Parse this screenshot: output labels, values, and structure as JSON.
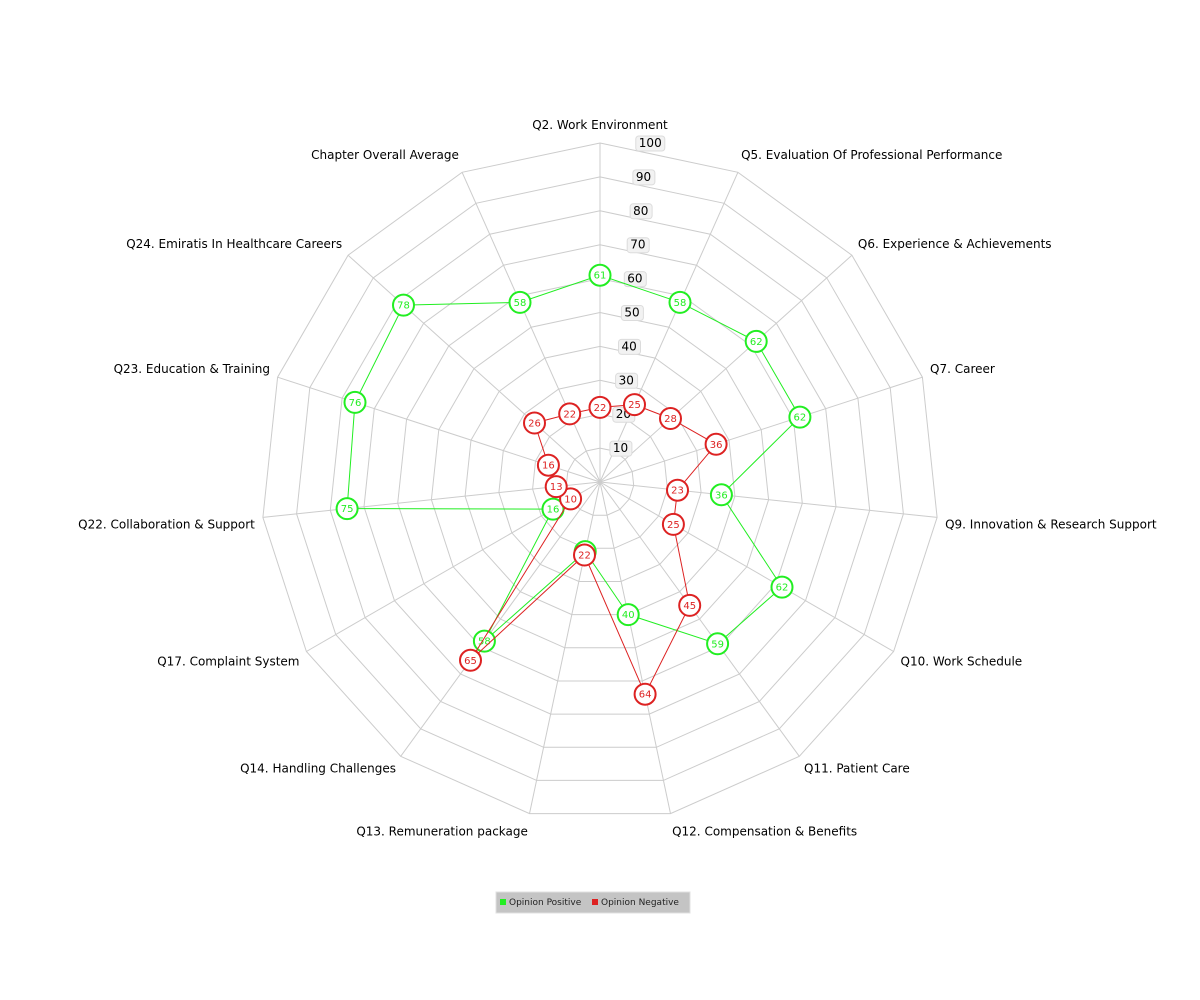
{
  "chart_data": {
    "type": "radar",
    "title": "",
    "categories": [
      "Q2. Work Environment",
      "Q5. Evaluation Of Professional Performance",
      "Q6. Experience & Achievements",
      "Q7. Career",
      "Q9. Innovation & Research Support",
      "Q10. Work Schedule",
      "Q11. Patient Care",
      "Q12. Compensation & Benefits",
      "Q13. Remuneration package",
      "Q14. Handling Challenges",
      "Q17. Complaint System",
      "Q22. Collaboration & Support",
      "Q23. Education & Training",
      "Q24. Emiratis In Healthcare Careers",
      "Chapter Overall Average"
    ],
    "radial_ticks": [
      "10",
      "20",
      "30",
      "40",
      "50",
      "60",
      "70",
      "80",
      "90",
      "100"
    ],
    "rmax": 100,
    "grid": true,
    "legend_position": "bottom-center",
    "series": [
      {
        "name": "Opinion Positive",
        "color": "#22ee22",
        "values": [
          61,
          58,
          62,
          62,
          36,
          62,
          59,
          40,
          21,
          58,
          16,
          75,
          76,
          78,
          58
        ]
      },
      {
        "name": "Opinion Negative",
        "color": "#dd2222",
        "values": [
          22,
          25,
          28,
          36,
          23,
          25,
          45,
          64,
          22,
          65,
          10,
          13,
          16,
          26,
          22
        ]
      }
    ]
  }
}
